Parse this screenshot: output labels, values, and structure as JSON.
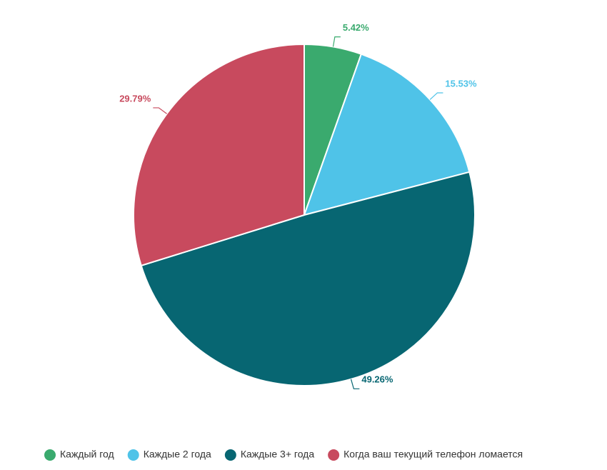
{
  "chart_data": {
    "type": "pie",
    "categories": [
      "Каждый год",
      "Каждые 2 года",
      "Каждые 3+ года",
      "Когда ваш текущий телефон ломается"
    ],
    "values": [
      5.42,
      15.53,
      49.26,
      29.79
    ],
    "value_labels": [
      "5.42%",
      "15.53%",
      "49.26%",
      "29.79%"
    ],
    "colors": [
      "#3aaa6e",
      "#4fc3e8",
      "#076672",
      "#c84a5e"
    ],
    "legend": "bottom"
  }
}
